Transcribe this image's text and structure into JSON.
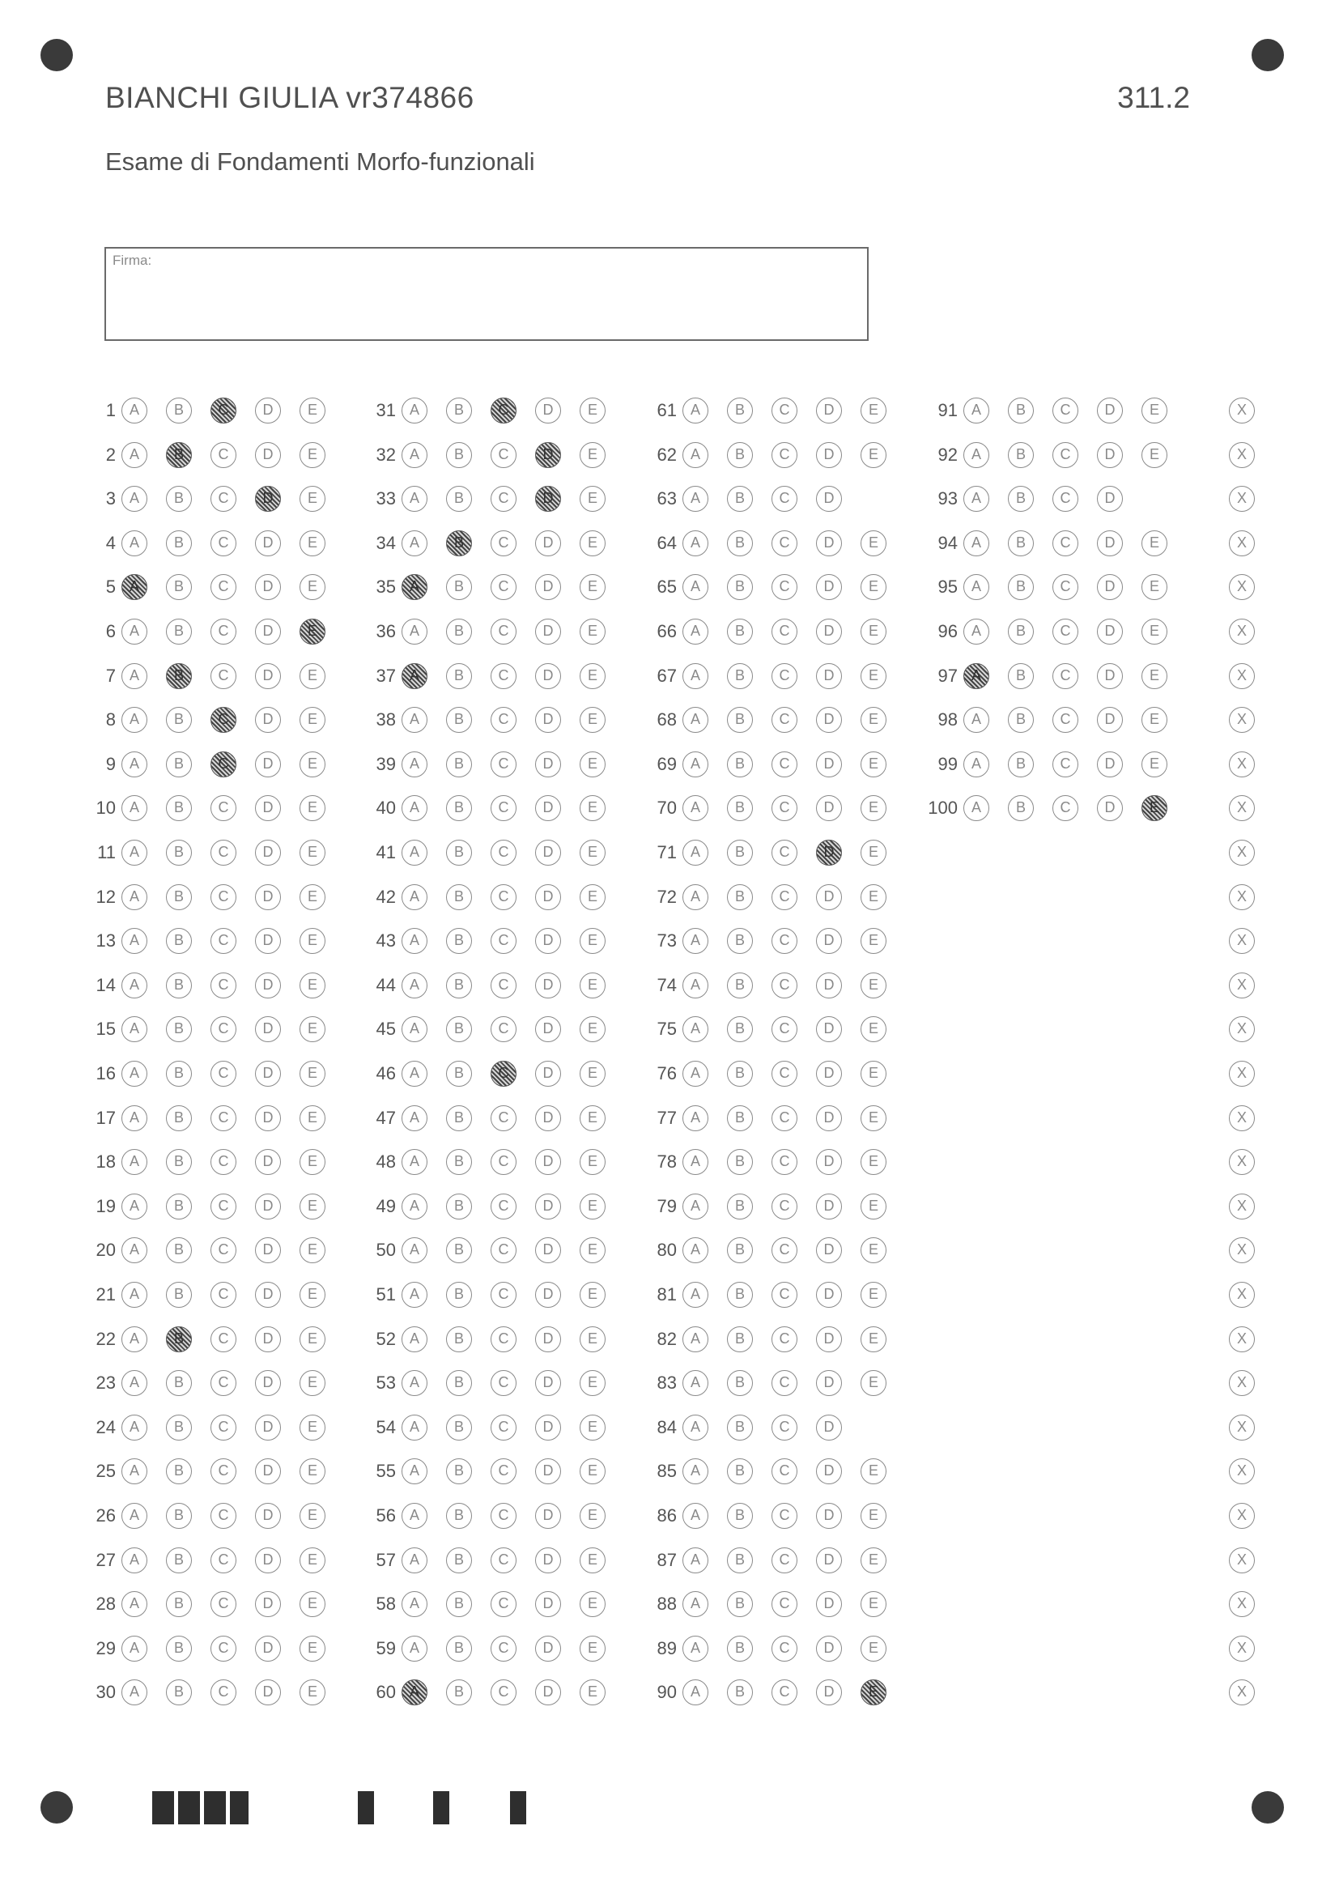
{
  "header": {
    "student": "BIANCHI GIULIA vr374866",
    "code": "311.2",
    "exam_title": "Esame di Fondamenti Morfo-funzionali",
    "signature_label": "Firma:"
  },
  "answer_sheet": {
    "options": [
      "A",
      "B",
      "C",
      "D",
      "E"
    ],
    "void_label": "X",
    "four_option_questions": [
      63,
      84,
      93
    ],
    "marked": {
      "1": "C",
      "2": "B",
      "3": "D",
      "5": "A",
      "6": "E",
      "7": "B",
      "8": "C",
      "9": "C",
      "22": "B",
      "31": "C",
      "32": "D",
      "33": "D",
      "34": "B",
      "35": "A",
      "37": "A",
      "46": "C",
      "60": "A",
      "71": "D",
      "90": "E",
      "97": "A",
      "100": "E"
    }
  }
}
